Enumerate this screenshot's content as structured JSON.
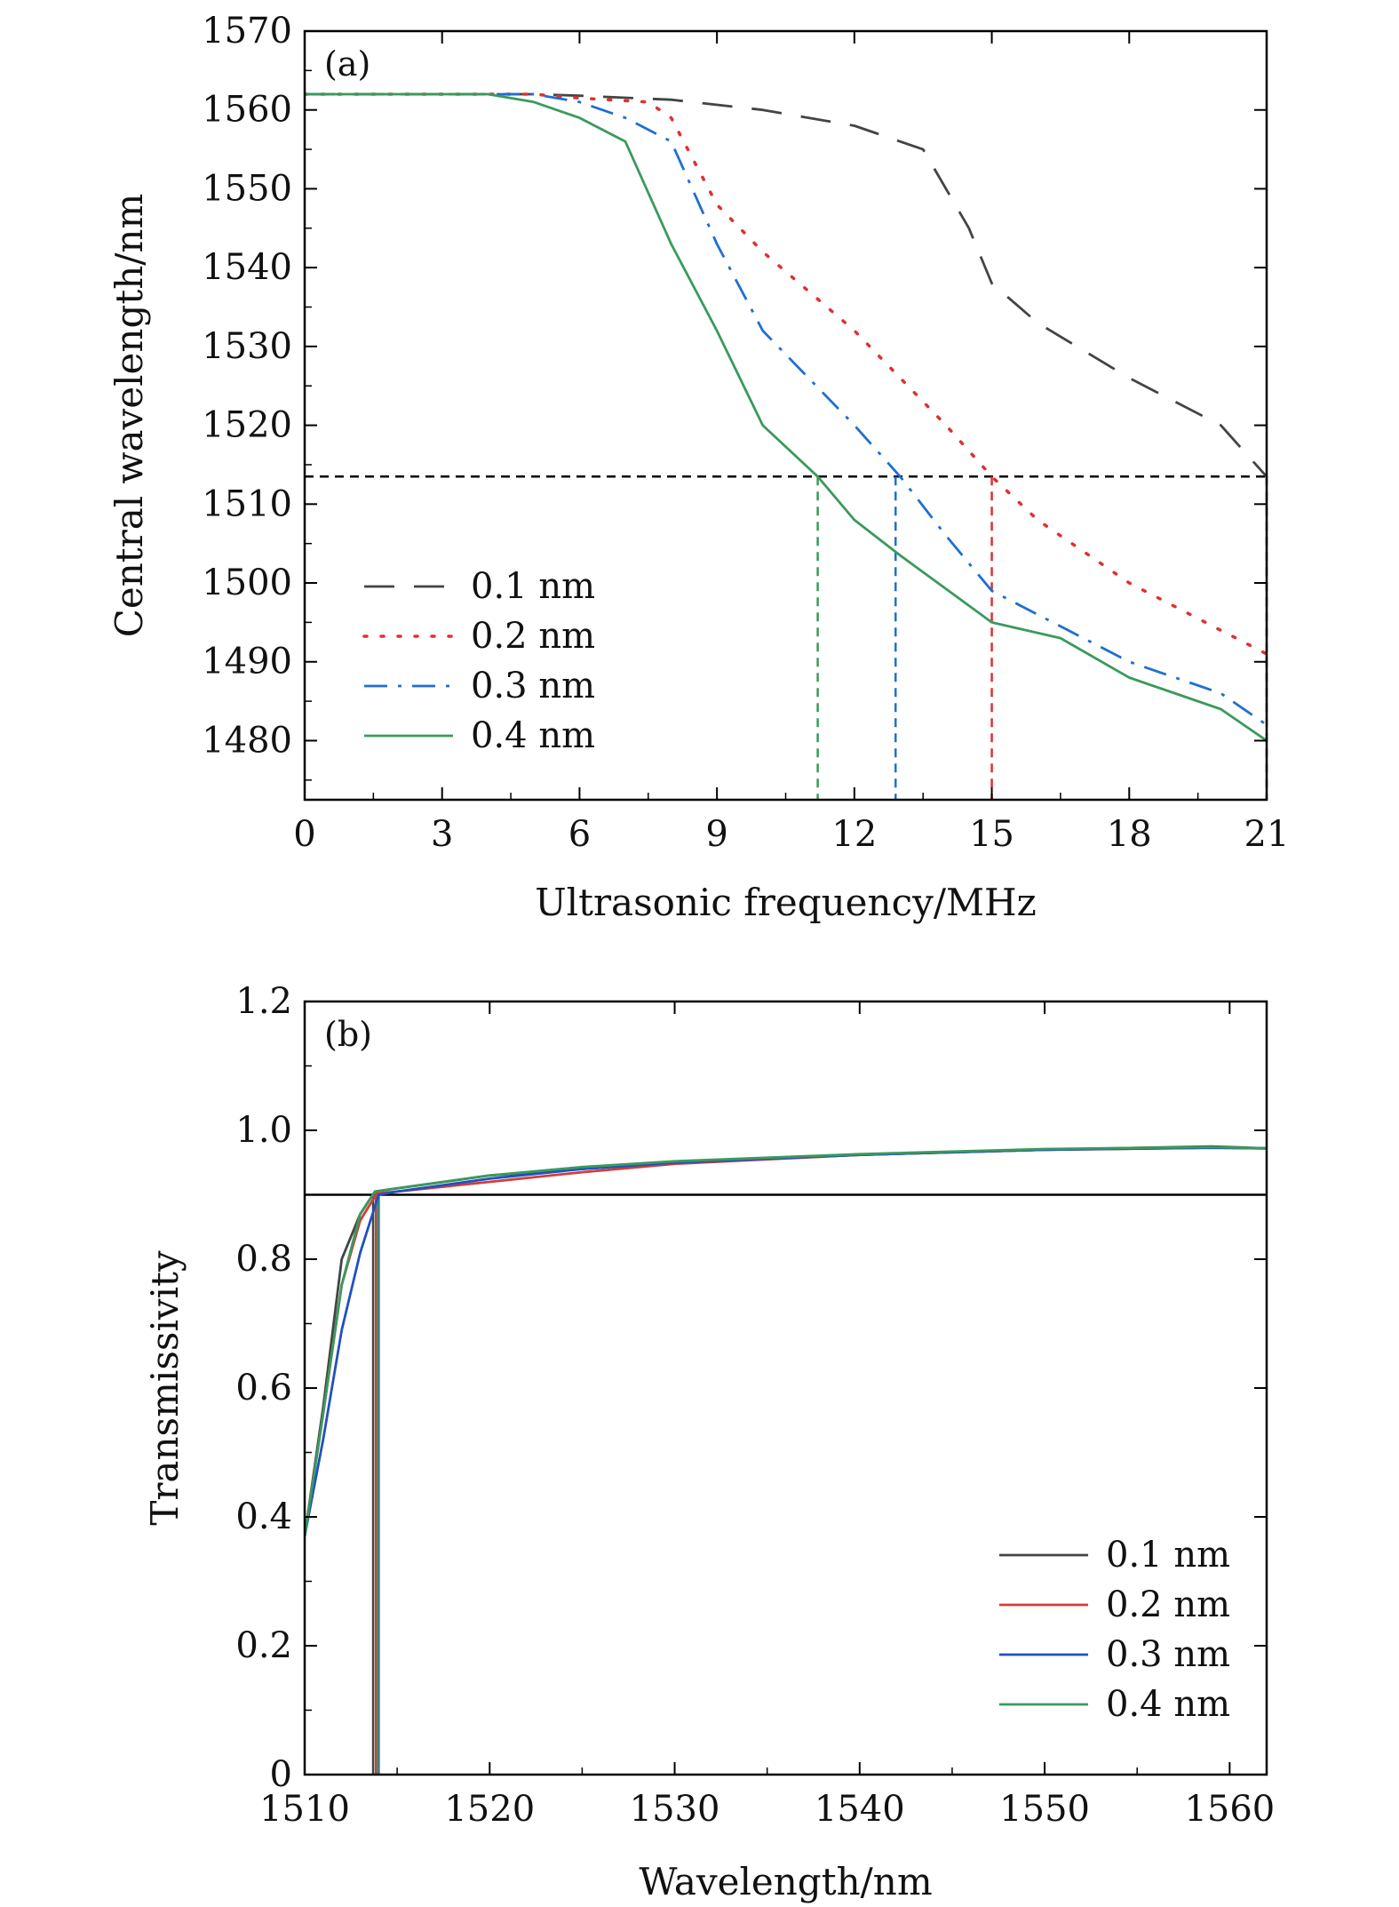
{
  "chart_data": [
    {
      "type": "line",
      "panel_label": "(a)",
      "xlabel": "Ultrasonic frequency/MHz",
      "ylabel": "Central wavelength/nm",
      "xlim": [
        0,
        21
      ],
      "ylim": [
        1472.5,
        1570
      ],
      "x_ticks": [
        0,
        3,
        6,
        9,
        12,
        15,
        18,
        21
      ],
      "x_tick_labels": [
        "0",
        "3",
        "6",
        "9",
        "12",
        "15",
        "18",
        "21"
      ],
      "y_ticks": [
        1480,
        1490,
        1500,
        1510,
        1520,
        1530,
        1540,
        1550,
        1560,
        1570
      ],
      "y_tick_labels": [
        "1480",
        "1490",
        "1500",
        "1510",
        "1520",
        "1530",
        "1540",
        "1550",
        "1560",
        "1570"
      ],
      "grid": false,
      "legend_position": "lower-left",
      "series": [
        {
          "name": "0.1 nm",
          "color": "#444444",
          "dash": "dashed",
          "x": [
            0,
            4,
            5,
            6,
            8,
            10,
            12,
            13.5,
            14.5,
            15,
            16,
            18,
            20,
            21
          ],
          "y": [
            1562,
            1562,
            1562,
            1561.8,
            1561.3,
            1560,
            1558,
            1555,
            1545,
            1538,
            1533,
            1526,
            1520,
            1513.5
          ]
        },
        {
          "name": "0.2 nm",
          "color": "#e03030",
          "dash": "dotted",
          "x": [
            0,
            4,
            5,
            6,
            7.5,
            8,
            9,
            10,
            12,
            14,
            15,
            16,
            18,
            20,
            21
          ],
          "y": [
            1562,
            1562,
            1562,
            1561.5,
            1561,
            1559,
            1548,
            1542,
            1532,
            1520,
            1513.5,
            1508,
            1500,
            1494,
            1491
          ]
        },
        {
          "name": "0.3 nm",
          "color": "#1f6fd1",
          "dash": "dashdot",
          "x": [
            0,
            4,
            5,
            6,
            7,
            8,
            9,
            10,
            11,
            12,
            13,
            14,
            15,
            16,
            17,
            18,
            19,
            20,
            21
          ],
          "y": [
            1562,
            1562,
            1562,
            1561,
            1559,
            1556,
            1543,
            1532,
            1526,
            1520,
            1513.5,
            1506,
            1499,
            1496,
            1493,
            1490,
            1488,
            1486,
            1482
          ]
        },
        {
          "name": "0.4 nm",
          "color": "#3a9a5c",
          "dash": "solid",
          "x": [
            0,
            4,
            5,
            6,
            7,
            8,
            9,
            10,
            11.2,
            12,
            13,
            15,
            16.5,
            18,
            20,
            21
          ],
          "y": [
            1562,
            1562,
            1561,
            1559,
            1556,
            1543,
            1532,
            1520,
            1513.5,
            1508,
            1503.5,
            1495,
            1493,
            1488,
            1484,
            1480
          ]
        }
      ],
      "reference_lines": [
        {
          "orientation": "horizontal",
          "y": 1513.5,
          "x_from": 0,
          "x_to": 21,
          "color": "#000000"
        },
        {
          "orientation": "vertical",
          "x": 11.2,
          "color": "#3a9a5c"
        },
        {
          "orientation": "vertical",
          "x": 12.9,
          "color": "#1f6fd1"
        },
        {
          "orientation": "vertical",
          "x": 15.0,
          "color": "#e03030"
        },
        {
          "orientation": "vertical",
          "x": 21.0,
          "color": "#444444"
        }
      ]
    },
    {
      "type": "line",
      "panel_label": "(b)",
      "xlabel": "Wavelength/nm",
      "ylabel": "Transmissivity",
      "xlim": [
        1510,
        1562
      ],
      "ylim": [
        0,
        1.2
      ],
      "x_ticks": [
        1510,
        1520,
        1530,
        1540,
        1550,
        1560
      ],
      "x_tick_labels": [
        "1510",
        "1520",
        "1530",
        "1540",
        "1550",
        "1560"
      ],
      "y_ticks": [
        0,
        0.2,
        0.4,
        0.6,
        0.8,
        1.0,
        1.2
      ],
      "y_tick_labels": [
        "0",
        "0.2",
        "0.4",
        "0.6",
        "0.8",
        "1.0",
        "1.2"
      ],
      "grid": false,
      "legend_position": "lower-right",
      "series": [
        {
          "name": "0.1 nm",
          "color": "#444444",
          "x": [
            1510,
            1511,
            1512,
            1513,
            1513.8,
            1515,
            1520,
            1525,
            1530,
            1540,
            1550,
            1559,
            1562
          ],
          "y": [
            0.37,
            0.57,
            0.8,
            0.87,
            0.905,
            0.91,
            0.93,
            0.94,
            0.95,
            0.962,
            0.97,
            0.975,
            0.972
          ]
        },
        {
          "name": "0.2 nm",
          "color": "#d43c3c",
          "x": [
            1510,
            1511,
            1512,
            1513,
            1513.9,
            1515,
            1520,
            1525,
            1530,
            1540,
            1550,
            1559,
            1562
          ],
          "y": [
            0.37,
            0.56,
            0.76,
            0.86,
            0.902,
            0.905,
            0.92,
            0.935,
            0.948,
            0.962,
            0.97,
            0.973,
            0.972
          ]
        },
        {
          "name": "0.3 nm",
          "color": "#2050c0",
          "x": [
            1510,
            1511,
            1512,
            1513,
            1514,
            1515,
            1520,
            1525,
            1530,
            1540,
            1550,
            1559,
            1562
          ],
          "y": [
            0.37,
            0.52,
            0.69,
            0.81,
            0.9,
            0.905,
            0.925,
            0.94,
            0.95,
            0.962,
            0.97,
            0.973,
            0.972
          ]
        },
        {
          "name": "0.4 nm",
          "color": "#3a9a5c",
          "x": [
            1510,
            1511,
            1512,
            1513,
            1513.8,
            1515,
            1520,
            1525,
            1530,
            1540,
            1550,
            1559,
            1562
          ],
          "y": [
            0.37,
            0.56,
            0.76,
            0.87,
            0.905,
            0.91,
            0.93,
            0.943,
            0.952,
            0.963,
            0.971,
            0.974,
            0.972
          ]
        }
      ],
      "reference_lines": [
        {
          "orientation": "horizontal",
          "y": 0.9,
          "x_from": 1510,
          "x_to": 1562,
          "color": "#000000"
        },
        {
          "orientation": "vertical",
          "x": 1513.7,
          "color": "#444444"
        },
        {
          "orientation": "vertical",
          "x": 1513.85,
          "color": "#d43c3c"
        },
        {
          "orientation": "vertical",
          "x": 1514.0,
          "color": "#2050c0"
        },
        {
          "orientation": "vertical",
          "x": 1513.95,
          "color": "#3a9a5c"
        }
      ]
    }
  ]
}
